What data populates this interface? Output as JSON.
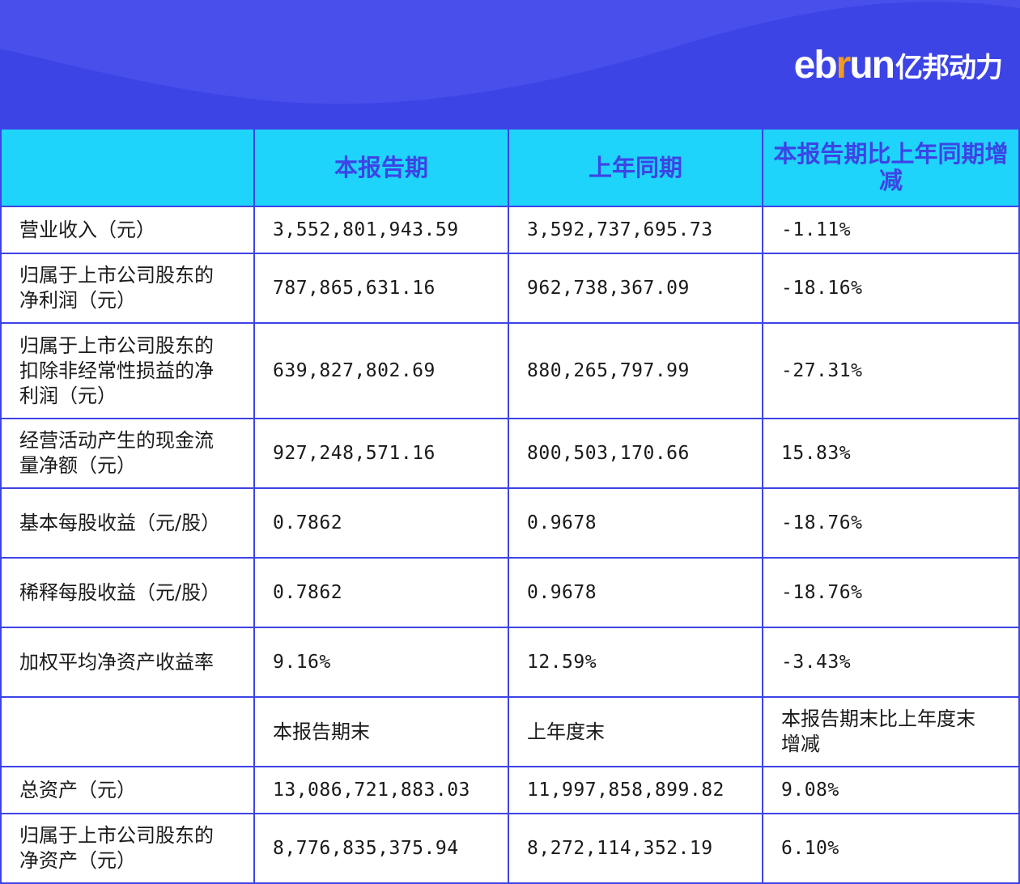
{
  "logo": {
    "latin_left": "eb",
    "latin_accent": "r",
    "latin_right": "un",
    "cn": "亿邦动力"
  },
  "colors": {
    "banner": "#3d44e6",
    "header_bg": "#1fd4fa",
    "header_text": "#3d44e6",
    "border": "#3d44e6",
    "logo_accent": "#f39a1e"
  },
  "table": {
    "headers": [
      "",
      "本报告期",
      "上年同期",
      "本报告期比上年同期增减"
    ],
    "rows": [
      [
        "营业收入（元）",
        "3,552,801,943.59",
        "3,592,737,695.73",
        "-1.11%"
      ],
      [
        "归属于上市公司股东的净利润（元）",
        "787,865,631.16",
        "962,738,367.09",
        "-18.16%"
      ],
      [
        "归属于上市公司股东的扣除非经常性损益的净利润（元）",
        "639,827,802.69",
        "880,265,797.99",
        "-27.31%"
      ],
      [
        "经营活动产生的现金流量净额（元）",
        "927,248,571.16",
        "800,503,170.66",
        "15.83%"
      ],
      [
        "基本每股收益（元/股）",
        "0.7862",
        "0.9678",
        "-18.76%"
      ],
      [
        "稀释每股收益（元/股）",
        "0.7862",
        "0.9678",
        "-18.76%"
      ],
      [
        "加权平均净资产收益率",
        "9.16%",
        "12.59%",
        "-3.43%"
      ],
      [
        "",
        "本报告期末",
        "上年度末",
        "本报告期末比上年度末增减"
      ],
      [
        "总资产（元）",
        "13,086,721,883.03",
        "11,997,858,899.82",
        "9.08%"
      ],
      [
        "归属于上市公司股东的净资产（元）",
        "8,776,835,375.94",
        "8,272,114,352.19",
        "6.10%"
      ]
    ]
  }
}
